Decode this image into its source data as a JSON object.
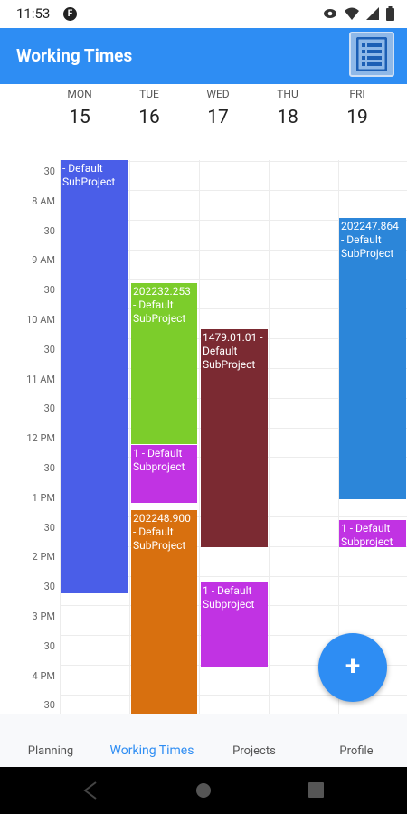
{
  "status": {
    "time": "11:53",
    "app_icon": "F"
  },
  "appbar": {
    "title": "Working Times",
    "list_icon": "list-icon"
  },
  "days": [
    {
      "name": "MON",
      "num": "15"
    },
    {
      "name": "TUE",
      "num": "16"
    },
    {
      "name": "WED",
      "num": "17"
    },
    {
      "name": "THU",
      "num": "18"
    },
    {
      "name": "FRI",
      "num": "19"
    }
  ],
  "time_labels": [
    "30",
    "8 AM",
    "30",
    "9 AM",
    "30",
    "10 AM",
    "30",
    "11 AM",
    "30",
    "12 PM",
    "30",
    "1 PM",
    "30",
    "2 PM",
    "30",
    "3 PM",
    "30",
    "4 PM",
    "30"
  ],
  "events": [
    {
      "text": "- Default SubProject",
      "color": "#4a5ee8"
    },
    {
      "text": "202232.253 - Default SubProject",
      "color": "#7ccd2b"
    },
    {
      "text": "1 - Default Subproject",
      "color": "#c133e3"
    },
    {
      "text": "202248.900 - Default SubProject",
      "color": "#d8700f"
    },
    {
      "text": "1479.01.01 - Default SubProject",
      "color": "#7b2a32"
    },
    {
      "text": "1 - Default Subproject",
      "color": "#c133e3"
    },
    {
      "text": "202247.864 - Default SubProject",
      "color": "#2c86d9"
    },
    {
      "text": "1 - Default Subproject",
      "color": "#c133e3"
    }
  ],
  "fab": {
    "label": "+"
  },
  "nav": {
    "planning": "Planning",
    "working_times": "Working Times",
    "projects": "Projects",
    "profile": "Profile"
  },
  "colors": {
    "accent": "#2e8df3"
  }
}
